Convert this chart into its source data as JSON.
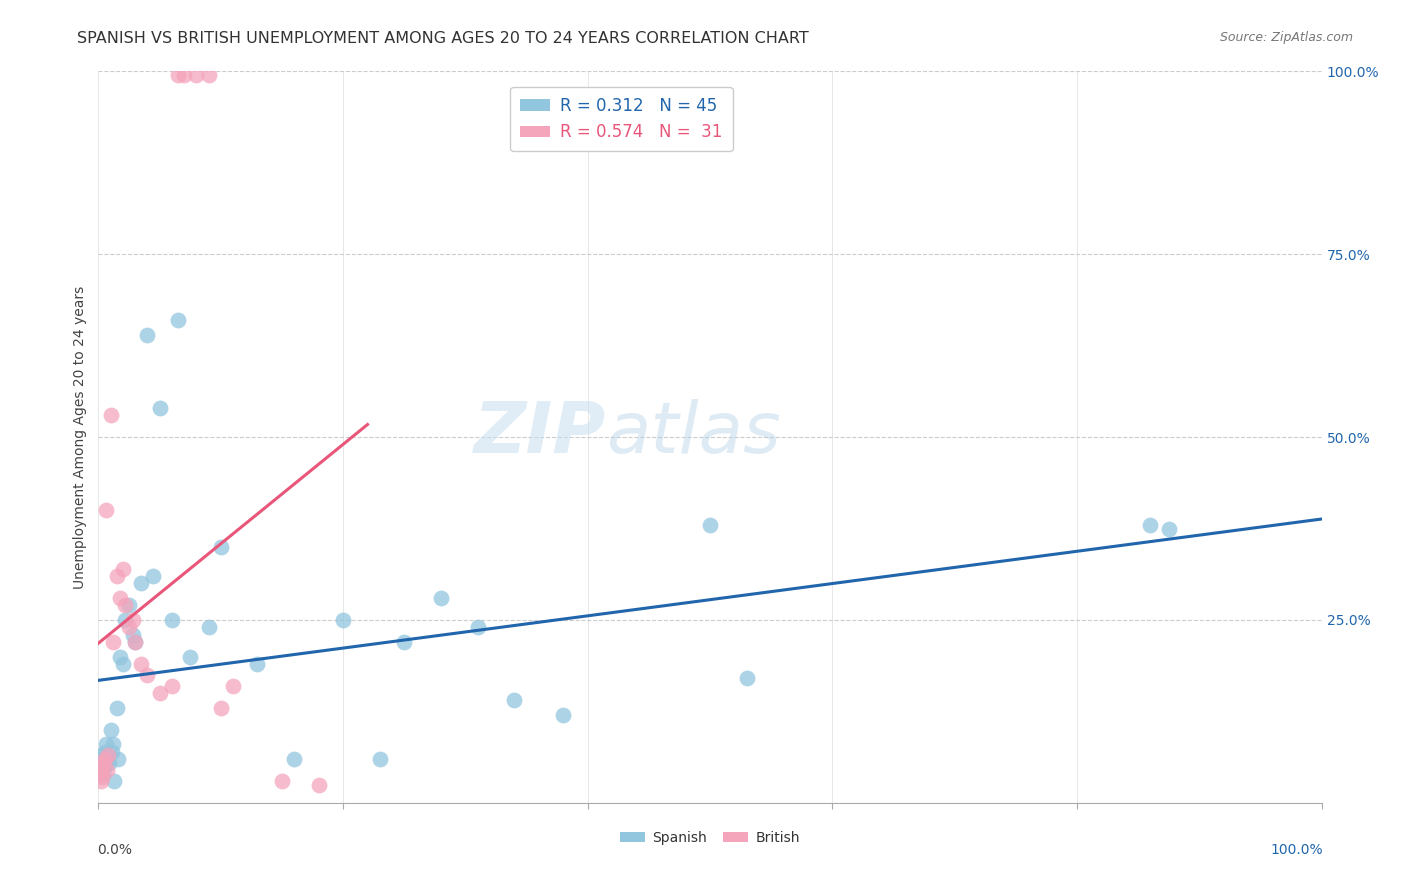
{
  "title": "SPANISH VS BRITISH UNEMPLOYMENT AMONG AGES 20 TO 24 YEARS CORRELATION CHART",
  "source": "Source: ZipAtlas.com",
  "ylabel": "Unemployment Among Ages 20 to 24 years",
  "spanish_color": "#92c5de",
  "british_color": "#f4a4bb",
  "spanish_line_color": "#2166ac",
  "british_line_color": "#e8567a",
  "background_color": "#ffffff",
  "watermark_zip": "ZIP",
  "watermark_atlas": "atlas",
  "title_fontsize": 11.5,
  "axis_label_fontsize": 10,
  "tick_fontsize": 10,
  "legend_fontsize": 12,
  "source_fontsize": 9,
  "spanish_x": [
    0.002,
    0.003,
    0.003,
    0.004,
    0.004,
    0.005,
    0.005,
    0.006,
    0.007,
    0.008,
    0.009,
    0.01,
    0.011,
    0.012,
    0.013,
    0.015,
    0.016,
    0.018,
    0.02,
    0.022,
    0.025,
    0.028,
    0.03,
    0.035,
    0.04,
    0.045,
    0.05,
    0.06,
    0.065,
    0.075,
    0.09,
    0.1,
    0.13,
    0.16,
    0.2,
    0.23,
    0.25,
    0.28,
    0.31,
    0.34,
    0.38,
    0.5,
    0.53,
    0.86,
    0.875
  ],
  "spanish_y": [
    0.055,
    0.065,
    0.045,
    0.06,
    0.04,
    0.07,
    0.05,
    0.08,
    0.06,
    0.065,
    0.055,
    0.1,
    0.07,
    0.08,
    0.03,
    0.13,
    0.06,
    0.2,
    0.19,
    0.25,
    0.27,
    0.23,
    0.22,
    0.3,
    0.64,
    0.31,
    0.54,
    0.25,
    0.66,
    0.2,
    0.24,
    0.35,
    0.19,
    0.06,
    0.25,
    0.06,
    0.22,
    0.28,
    0.24,
    0.14,
    0.12,
    0.38,
    0.17,
    0.38,
    0.375
  ],
  "british_x": [
    0.001,
    0.002,
    0.002,
    0.003,
    0.003,
    0.004,
    0.005,
    0.006,
    0.007,
    0.008,
    0.01,
    0.012,
    0.015,
    0.018,
    0.02,
    0.022,
    0.025,
    0.028,
    0.03,
    0.035,
    0.04,
    0.05,
    0.06,
    0.065,
    0.07,
    0.08,
    0.09,
    0.1,
    0.11,
    0.15,
    0.18
  ],
  "british_y": [
    0.04,
    0.03,
    0.05,
    0.045,
    0.035,
    0.055,
    0.06,
    0.4,
    0.045,
    0.065,
    0.53,
    0.22,
    0.31,
    0.28,
    0.32,
    0.27,
    0.24,
    0.25,
    0.22,
    0.19,
    0.175,
    0.15,
    0.16,
    0.995,
    0.995,
    0.995,
    0.995,
    0.13,
    0.16,
    0.03,
    0.025
  ],
  "xlim": [
    0.0,
    1.0
  ],
  "ylim": [
    0.0,
    1.0
  ]
}
